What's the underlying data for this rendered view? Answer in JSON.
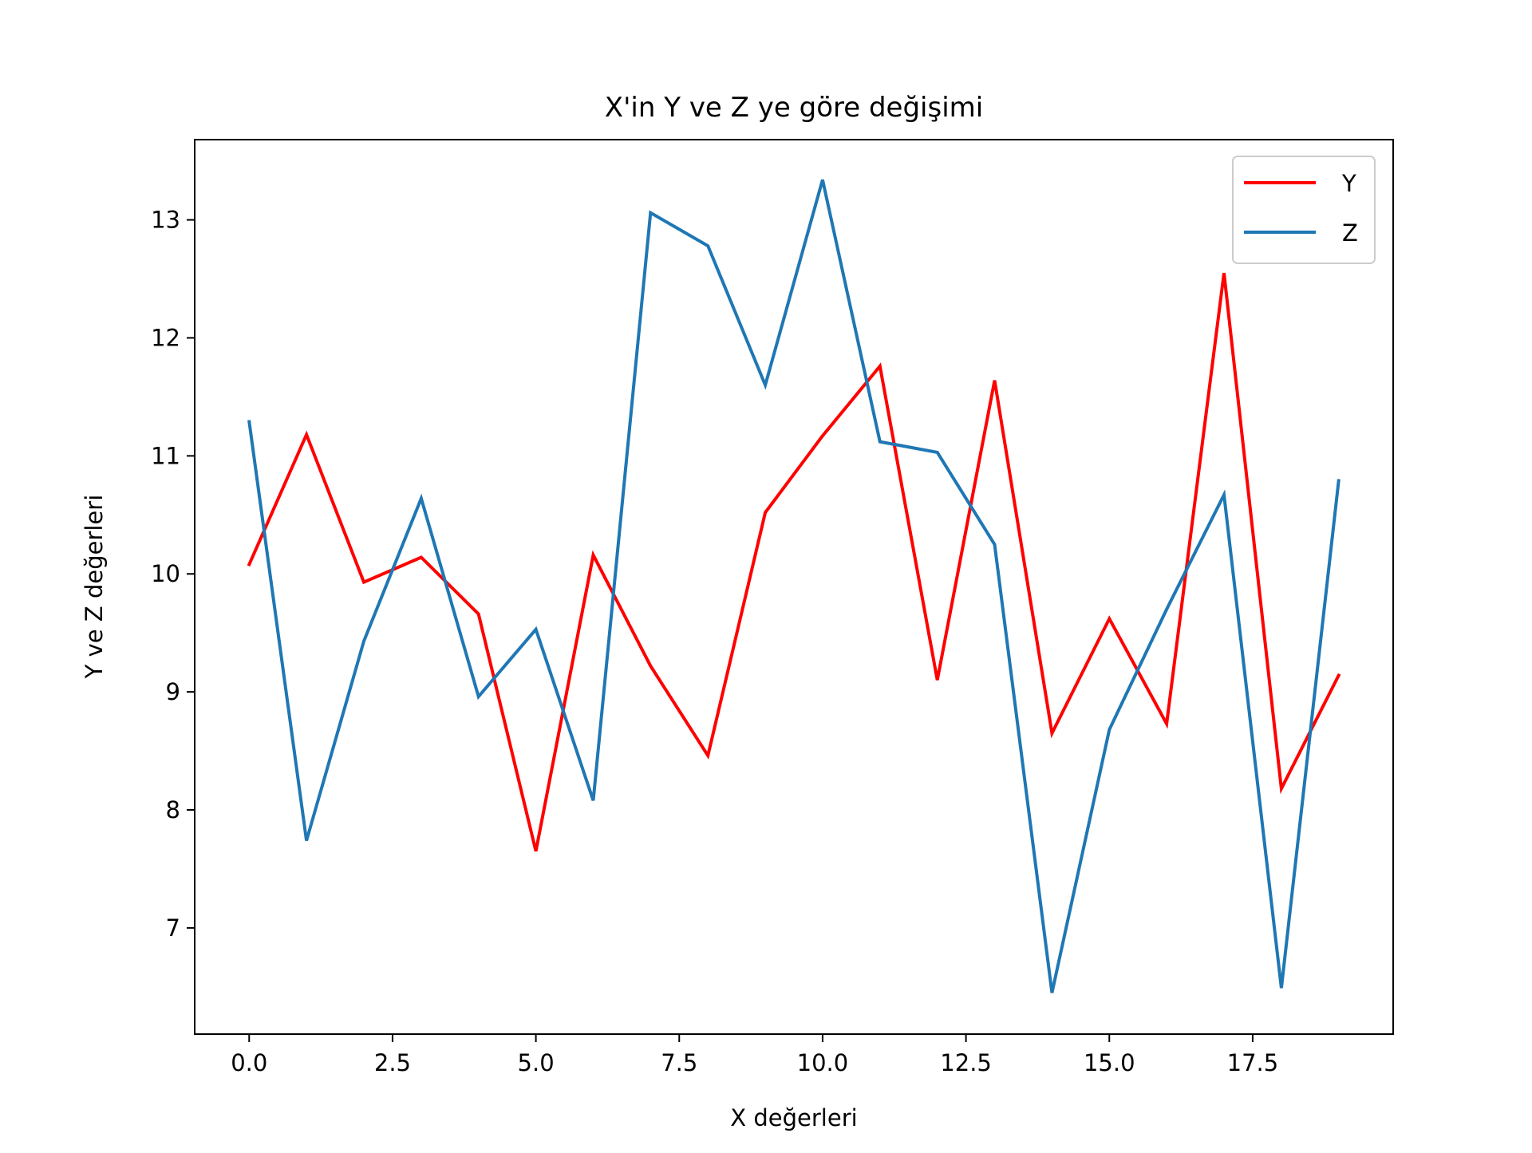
{
  "chart_data": {
    "type": "line",
    "title": "X'in Y ve Z ye göre değişimi",
    "xlabel": "X değerleri",
    "ylabel": "Y ve Z değerleri",
    "xlim": [
      -0.95,
      19.95
    ],
    "ylim": [
      6.1,
      13.68
    ],
    "xticks": [
      0,
      2.5,
      5,
      7.5,
      10,
      12.5,
      15,
      17.5
    ],
    "xtick_labels": [
      "0.0",
      "2.5",
      "5.0",
      "7.5",
      "10.0",
      "12.5",
      "15.0",
      "17.5"
    ],
    "yticks": [
      7,
      8,
      9,
      10,
      11,
      12,
      13
    ],
    "ytick_labels": [
      "7",
      "8",
      "9",
      "10",
      "11",
      "12",
      "13"
    ],
    "grid": false,
    "legend": {
      "position": "top-right"
    },
    "x": [
      0,
      1,
      2,
      3,
      4,
      5,
      6,
      7,
      8,
      9,
      10,
      11,
      12,
      13,
      14,
      15,
      16,
      17,
      18,
      19
    ],
    "series": [
      {
        "name": "Y",
        "color": "#ff0000",
        "values": [
          10.08,
          11.18,
          9.93,
          10.14,
          9.66,
          7.65,
          10.16,
          9.22,
          8.46,
          10.52,
          11.17,
          11.76,
          9.1,
          11.64,
          8.65,
          9.62,
          8.73,
          12.55,
          8.18,
          9.14
        ]
      },
      {
        "name": "Z",
        "color": "#1f77b4",
        "values": [
          11.29,
          7.74,
          9.43,
          10.64,
          8.96,
          9.53,
          8.08,
          13.06,
          12.78,
          11.6,
          13.34,
          11.12,
          11.03,
          10.25,
          6.45,
          8.68,
          9.7,
          10.67,
          6.49,
          10.79
        ]
      }
    ]
  }
}
